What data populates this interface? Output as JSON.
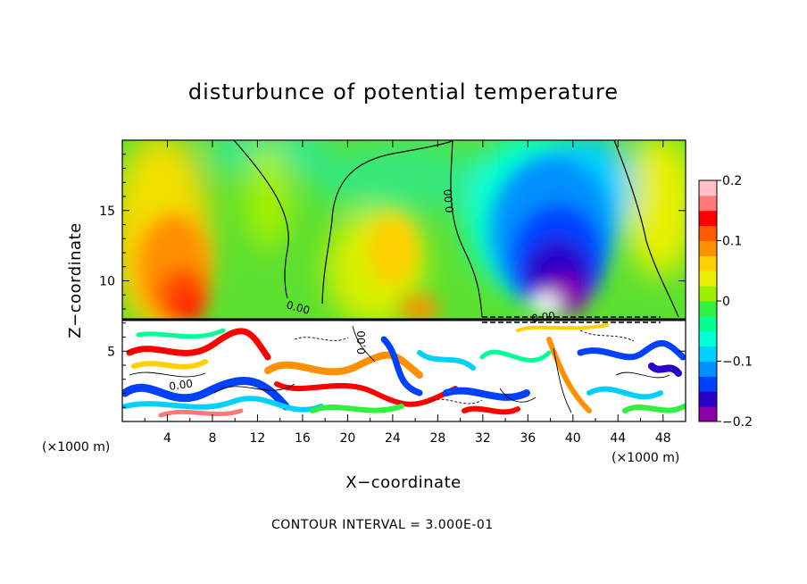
{
  "chart_data": {
    "type": "heatmap",
    "title": "disturbunce of potential temperature",
    "xlabel": "X−coordinate",
    "ylabel": "Z−coordinate",
    "x_unit": "(×1000 m)",
    "z_unit": "(×1000 m)",
    "xlim": [
      0,
      50
    ],
    "zlim": [
      0,
      20
    ],
    "x_ticks": [
      4,
      8,
      12,
      16,
      20,
      24,
      28,
      32,
      36,
      40,
      44,
      48
    ],
    "x_tick_labels": [
      "4",
      "8",
      "12",
      "16",
      "20",
      "24",
      "28",
      "32",
      "36",
      "40",
      "44",
      "48"
    ],
    "z_ticks": [
      5,
      10,
      15
    ],
    "z_tick_labels": [
      "5",
      "10",
      "15"
    ],
    "colorbar": {
      "range": [
        -0.2,
        0.2
      ],
      "tick_values": [
        0.2,
        0.1,
        0,
        -0.1,
        -0.2
      ],
      "tick_labels": [
        "0.2",
        "0.1",
        "0",
        "−0.1",
        "−0.2"
      ],
      "colors": [
        "#8c00a8",
        "#2a00c8",
        "#0040ff",
        "#0090ff",
        "#00d0ff",
        "#00ffd8",
        "#00ff90",
        "#30f040",
        "#9cf000",
        "#e8f000",
        "#ffd000",
        "#ff9000",
        "#ff5a00",
        "#ff0000",
        "#ff7878",
        "#ffc0c8"
      ]
    },
    "contour_interval": 0.3,
    "contour_labels": [
      "0.00",
      "0.00",
      "0.00",
      "0.00",
      "0.00"
    ],
    "interface_height": 7.2,
    "features": [
      {
        "kind": "positive anomaly",
        "x": 5.5,
        "z": 9.5,
        "value": 0.15
      },
      {
        "kind": "positive anomaly",
        "x": 24.5,
        "z": 12,
        "value": 0.06
      },
      {
        "kind": "negative anomaly",
        "x": 37,
        "z": 12,
        "value": -0.19
      },
      {
        "kind": "zero contour",
        "x": 13,
        "z": 10
      },
      {
        "kind": "zero contour",
        "x": 30,
        "z": 16
      }
    ]
  },
  "footer": {
    "contour_text": "CONTOUR INTERVAL =  3.000E-01"
  }
}
